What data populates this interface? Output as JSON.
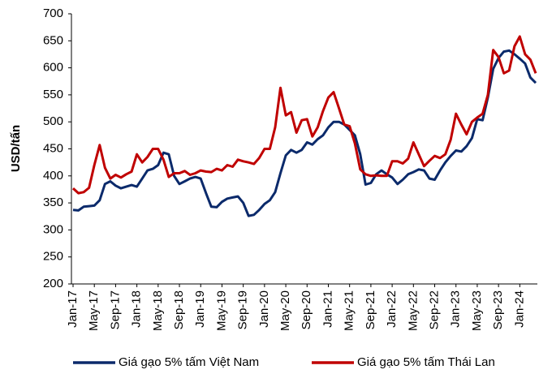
{
  "chart_data": {
    "type": "line",
    "y_label": "USD/tấn",
    "categories": [
      "Jan-17",
      null,
      null,
      null,
      "May-17",
      null,
      null,
      null,
      "Sep-17",
      null,
      null,
      null,
      "Jan-18",
      null,
      null,
      null,
      "May-18",
      null,
      null,
      null,
      "Sep-18",
      null,
      null,
      null,
      "Jan-19",
      null,
      null,
      null,
      "May-19",
      null,
      null,
      null,
      "Sep-19",
      null,
      null,
      null,
      "Jan-20",
      null,
      null,
      null,
      "May-20",
      null,
      null,
      null,
      "Sep-20",
      null,
      null,
      null,
      "Jan-21",
      null,
      null,
      null,
      "May-21",
      null,
      null,
      null,
      "Sep-21",
      null,
      null,
      null,
      "Jan-22",
      null,
      null,
      null,
      "May-22",
      null,
      null,
      null,
      "Sep-22",
      null,
      null,
      null,
      "Jan-23",
      null,
      null,
      null,
      "May-23",
      null,
      null,
      null,
      "Sep-23",
      null,
      null,
      null,
      "Jan-24",
      null,
      null,
      null
    ],
    "series": [
      {
        "name": "Giá gạo 5% tấm Việt Nam",
        "color": "#0b2a6b",
        "values": [
          337,
          336,
          343,
          344,
          345,
          355,
          385,
          390,
          382,
          377,
          380,
          383,
          380,
          395,
          410,
          413,
          420,
          443,
          440,
          400,
          385,
          390,
          395,
          398,
          395,
          368,
          343,
          342,
          352,
          358,
          360,
          362,
          350,
          326,
          328,
          337,
          348,
          355,
          370,
          405,
          438,
          448,
          443,
          448,
          462,
          458,
          468,
          475,
          490,
          500,
          500,
          495,
          485,
          475,
          440,
          384,
          387,
          403,
          410,
          403,
          397,
          385,
          393,
          403,
          407,
          412,
          410,
          395,
          393,
          410,
          425,
          437,
          447,
          445,
          455,
          470,
          505,
          503,
          545,
          598,
          618,
          630,
          632,
          625,
          617,
          608,
          582,
          572
        ]
      },
      {
        "name": "Giá gạo 5% tấm Thái Lan",
        "color": "#c00000",
        "values": [
          377,
          368,
          370,
          378,
          420,
          457,
          415,
          395,
          402,
          397,
          403,
          408,
          440,
          425,
          435,
          450,
          450,
          430,
          398,
          405,
          405,
          409,
          402,
          405,
          410,
          408,
          407,
          413,
          410,
          420,
          417,
          430,
          427,
          425,
          422,
          433,
          450,
          450,
          490,
          563,
          512,
          518,
          480,
          503,
          505,
          473,
          490,
          520,
          545,
          555,
          525,
          495,
          492,
          460,
          412,
          403,
          400,
          401,
          400,
          400,
          427,
          427,
          423,
          432,
          462,
          440,
          418,
          428,
          437,
          433,
          440,
          467,
          515,
          495,
          477,
          500,
          508,
          515,
          550,
          633,
          620,
          590,
          595,
          640,
          658,
          625,
          615,
          590
        ]
      }
    ],
    "ylim": [
      200,
      700
    ],
    "yticks": [
      200,
      250,
      300,
      350,
      400,
      450,
      500,
      550,
      600,
      650,
      700
    ]
  }
}
